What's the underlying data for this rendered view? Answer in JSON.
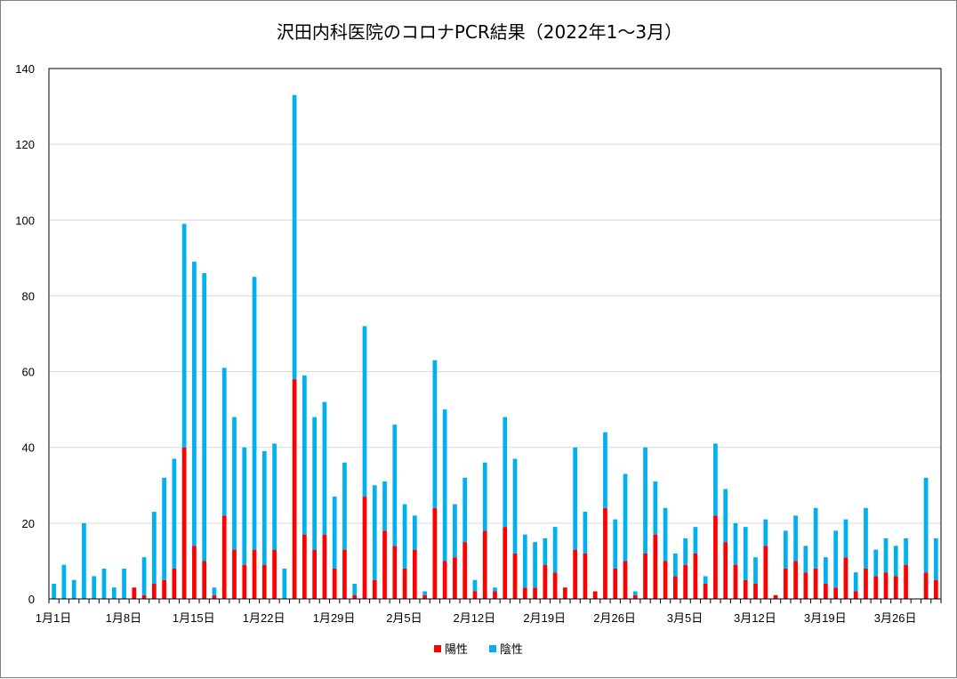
{
  "chart_data": {
    "type": "bar",
    "stacked": true,
    "title": "沢田内科医院のコロナPCR結果（2022年1～3月）",
    "xlabel": "",
    "ylabel": "",
    "ylim": [
      0,
      140
    ],
    "yticks": [
      0,
      20,
      40,
      60,
      80,
      100,
      120,
      140
    ],
    "grid": true,
    "legend_position": "bottom",
    "x_tick_labels": [
      {
        "index": 0,
        "label": "1月1日"
      },
      {
        "index": 7,
        "label": "1月8日"
      },
      {
        "index": 14,
        "label": "1月15日"
      },
      {
        "index": 21,
        "label": "1月22日"
      },
      {
        "index": 28,
        "label": "1月29日"
      },
      {
        "index": 35,
        "label": "2月5日"
      },
      {
        "index": 42,
        "label": "2月12日"
      },
      {
        "index": 49,
        "label": "2月19日"
      },
      {
        "index": 56,
        "label": "2月26日"
      },
      {
        "index": 63,
        "label": "3月5日"
      },
      {
        "index": 70,
        "label": "3月12日"
      },
      {
        "index": 77,
        "label": "3月19日"
      },
      {
        "index": 84,
        "label": "3月26日"
      }
    ],
    "series": [
      {
        "name": "陽性",
        "color": "#ff0000",
        "values": [
          0,
          0,
          0,
          0,
          0,
          0,
          0,
          0,
          3,
          1,
          4,
          5,
          8,
          40,
          14,
          10,
          1,
          22,
          13,
          9,
          13,
          9,
          13,
          0,
          58,
          17,
          13,
          17,
          8,
          13,
          1,
          27,
          5,
          18,
          14,
          8,
          13,
          1,
          24,
          10,
          11,
          15,
          2,
          18,
          2,
          19,
          12,
          3,
          3,
          9,
          7,
          3,
          13,
          12,
          2,
          24,
          8,
          10,
          1,
          12,
          17,
          10,
          6,
          9,
          12,
          4,
          22,
          15,
          9,
          5,
          4,
          14,
          1,
          8,
          10,
          7,
          8,
          4,
          3,
          11,
          2,
          8,
          6,
          7,
          6,
          9,
          0,
          7,
          5
        ]
      },
      {
        "name": "陰性",
        "color": "#00b0f0",
        "values": [
          4,
          9,
          5,
          20,
          6,
          8,
          3,
          8,
          0,
          10,
          19,
          27,
          29,
          59,
          75,
          76,
          2,
          39,
          35,
          31,
          72,
          30,
          28,
          8,
          75,
          42,
          35,
          35,
          19,
          23,
          3,
          45,
          25,
          13,
          32,
          17,
          9,
          1,
          39,
          40,
          14,
          17,
          3,
          18,
          1,
          29,
          25,
          14,
          12,
          7,
          12,
          0,
          27,
          11,
          0,
          20,
          13,
          23,
          1,
          28,
          14,
          14,
          6,
          7,
          7,
          2,
          19,
          14,
          11,
          14,
          7,
          7,
          0,
          10,
          12,
          7,
          16,
          7,
          15,
          10,
          5,
          16,
          7,
          9,
          8,
          7,
          0,
          25,
          11
        ]
      }
    ]
  }
}
